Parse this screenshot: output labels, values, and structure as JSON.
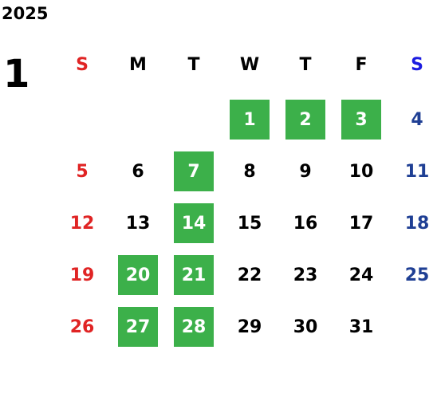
{
  "year": "2025",
  "month": "1",
  "weekdays": [
    "S",
    "M",
    "T",
    "W",
    "T",
    "F",
    "S"
  ],
  "weeks": [
    [
      null,
      null,
      null,
      {
        "day": 1,
        "highlight": true
      },
      {
        "day": 2,
        "highlight": true
      },
      {
        "day": 3,
        "highlight": true
      },
      {
        "day": 4,
        "highlight": false
      }
    ],
    [
      {
        "day": 5,
        "highlight": false
      },
      {
        "day": 6,
        "highlight": false
      },
      {
        "day": 7,
        "highlight": true
      },
      {
        "day": 8,
        "highlight": false
      },
      {
        "day": 9,
        "highlight": false
      },
      {
        "day": 10,
        "highlight": false
      },
      {
        "day": 11,
        "highlight": false
      }
    ],
    [
      {
        "day": 12,
        "highlight": false
      },
      {
        "day": 13,
        "highlight": false
      },
      {
        "day": 14,
        "highlight": true
      },
      {
        "day": 15,
        "highlight": false
      },
      {
        "day": 16,
        "highlight": false
      },
      {
        "day": 17,
        "highlight": false
      },
      {
        "day": 18,
        "highlight": false
      }
    ],
    [
      {
        "day": 19,
        "highlight": false
      },
      {
        "day": 20,
        "highlight": true
      },
      {
        "day": 21,
        "highlight": true
      },
      {
        "day": 22,
        "highlight": false
      },
      {
        "day": 23,
        "highlight": false
      },
      {
        "day": 24,
        "highlight": false
      },
      {
        "day": 25,
        "highlight": false
      }
    ],
    [
      {
        "day": 26,
        "highlight": false
      },
      {
        "day": 27,
        "highlight": true
      },
      {
        "day": 28,
        "highlight": true
      },
      {
        "day": 29,
        "highlight": false
      },
      {
        "day": 30,
        "highlight": false
      },
      {
        "day": 31,
        "highlight": false
      },
      null
    ]
  ]
}
